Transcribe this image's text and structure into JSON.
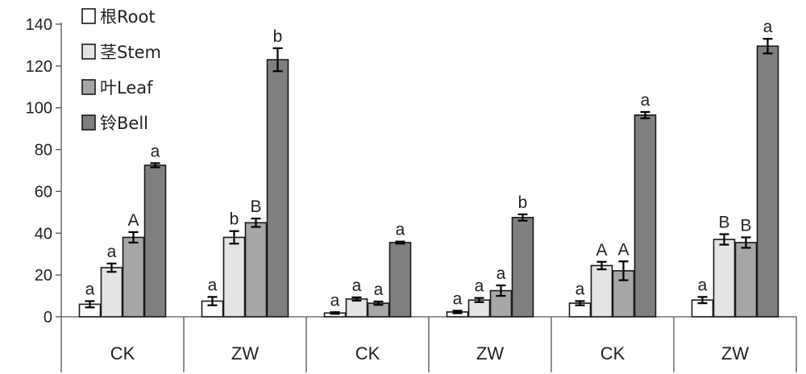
{
  "chart_data": {
    "type": "bar",
    "categories": [
      "CK",
      "ZW",
      "CK",
      "ZW",
      "CK",
      "ZW"
    ],
    "ylim": [
      0,
      140
    ],
    "yticks": [
      0,
      20,
      40,
      60,
      80,
      100,
      120,
      140
    ],
    "grid": false,
    "legend_position": "top-left",
    "series": [
      {
        "name": "根Root",
        "color": "#ffffff",
        "values": [
          6,
          7.5,
          1.8,
          2.3,
          6.5,
          8
        ],
        "errors": [
          1.5,
          2,
          0.4,
          0.6,
          1,
          1.5
        ],
        "labels": [
          "a",
          "a",
          "a",
          "a",
          "a",
          "a"
        ]
      },
      {
        "name": "茎Stem",
        "color": "#e4e4e4",
        "values": [
          23.5,
          38,
          8.5,
          8,
          24.5,
          37
        ],
        "errors": [
          2,
          3,
          0.8,
          1,
          1.8,
          2.5
        ],
        "labels": [
          "a",
          "b",
          "a",
          "a",
          "A",
          "B"
        ]
      },
      {
        "name": "叶Leaf",
        "color": "#a6a6a6",
        "values": [
          38,
          45,
          6.5,
          12.5,
          22,
          35.5
        ],
        "errors": [
          2.5,
          2,
          0.8,
          2.5,
          4.5,
          2.5
        ],
        "labels": [
          "A",
          "B",
          "a",
          "a",
          "A",
          "B"
        ]
      },
      {
        "name": "铃Bell",
        "color": "#7f7f7f",
        "values": [
          72.5,
          123,
          35.5,
          47.5,
          96.5,
          129.5
        ],
        "errors": [
          1,
          5.5,
          0.5,
          1.5,
          1.5,
          3.5
        ],
        "labels": [
          "a",
          "b",
          "a",
          "b",
          "a",
          "a"
        ]
      }
    ]
  }
}
